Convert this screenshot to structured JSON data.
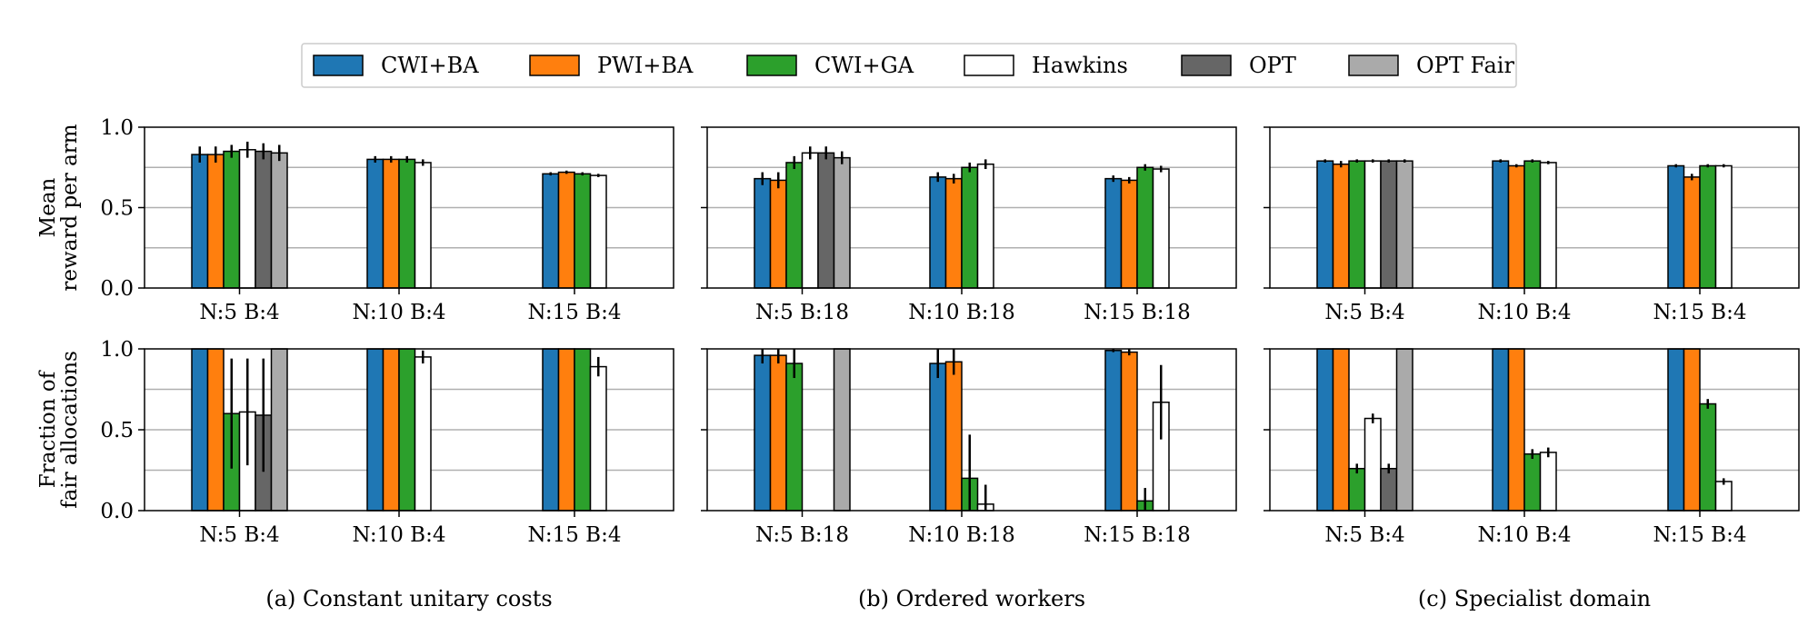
{
  "figure": {
    "captions": [
      "(a) Constant unitary costs",
      "(b) Ordered workers",
      "(c) Specialist domain"
    ],
    "row_ylabels": [
      [
        "Mean",
        "reward per arm"
      ],
      [
        "Fraction of",
        "fair allocations"
      ]
    ]
  },
  "legend": {
    "entries": [
      {
        "name": "CWI+BA",
        "color": "#1f77b4"
      },
      {
        "name": "PWI+BA",
        "color": "#ff7f0e"
      },
      {
        "name": "CWI+GA",
        "color": "#2ca02c"
      },
      {
        "name": "Hawkins",
        "color": "#ffffff"
      },
      {
        "name": "OPT",
        "color": "#666666"
      },
      {
        "name": "OPT Fair",
        "color": "#aaaaaa"
      }
    ]
  },
  "chart_data": [
    {
      "type": "bar",
      "panel": "a",
      "row": "top",
      "categories": [
        "N:5 B:4",
        "N:10 B:4",
        "N:15 B:4"
      ],
      "ylim": [
        0,
        1
      ],
      "yticks": [
        "0.0",
        "0.5",
        "1.0"
      ],
      "grid": true,
      "series": [
        {
          "name": "CWI+BA",
          "values": [
            0.83,
            0.8,
            0.71
          ],
          "errors": [
            0.05,
            0.02,
            0.01
          ]
        },
        {
          "name": "PWI+BA",
          "values": [
            0.83,
            0.8,
            0.72
          ],
          "errors": [
            0.05,
            0.02,
            0.01
          ]
        },
        {
          "name": "CWI+GA",
          "values": [
            0.85,
            0.8,
            0.71
          ],
          "errors": [
            0.04,
            0.02,
            0.01
          ]
        },
        {
          "name": "Hawkins",
          "values": [
            0.86,
            0.78,
            0.7
          ],
          "errors": [
            0.05,
            0.02,
            0.01
          ]
        },
        {
          "name": "OPT",
          "values": [
            0.85,
            null,
            null
          ],
          "errors": [
            0.05,
            null,
            null
          ]
        },
        {
          "name": "OPT Fair",
          "values": [
            0.84,
            null,
            null
          ],
          "errors": [
            0.05,
            null,
            null
          ]
        }
      ]
    },
    {
      "type": "bar",
      "panel": "b",
      "row": "top",
      "categories": [
        "N:5 B:18",
        "N:10 B:18",
        "N:15 B:18"
      ],
      "ylim": [
        0,
        1
      ],
      "yticks": [
        "0.0",
        "0.5",
        "1.0"
      ],
      "grid": true,
      "series": [
        {
          "name": "CWI+BA",
          "values": [
            0.68,
            0.69,
            0.68
          ],
          "errors": [
            0.04,
            0.03,
            0.02
          ]
        },
        {
          "name": "PWI+BA",
          "values": [
            0.67,
            0.68,
            0.67
          ],
          "errors": [
            0.05,
            0.03,
            0.02
          ]
        },
        {
          "name": "CWI+GA",
          "values": [
            0.78,
            0.75,
            0.75
          ],
          "errors": [
            0.04,
            0.03,
            0.02
          ]
        },
        {
          "name": "Hawkins",
          "values": [
            0.84,
            0.77,
            0.74
          ],
          "errors": [
            0.04,
            0.03,
            0.02
          ]
        },
        {
          "name": "OPT",
          "values": [
            0.84,
            null,
            null
          ],
          "errors": [
            0.04,
            null,
            null
          ]
        },
        {
          "name": "OPT Fair",
          "values": [
            0.81,
            null,
            null
          ],
          "errors": [
            0.04,
            null,
            null
          ]
        }
      ]
    },
    {
      "type": "bar",
      "panel": "c",
      "row": "top",
      "categories": [
        "N:5 B:4",
        "N:10 B:4",
        "N:15 B:4"
      ],
      "ylim": [
        0,
        1
      ],
      "yticks": [
        "0.0",
        "0.5",
        "1.0"
      ],
      "grid": true,
      "series": [
        {
          "name": "CWI+BA",
          "values": [
            0.79,
            0.79,
            0.76
          ],
          "errors": [
            0.01,
            0.01,
            0.01
          ]
        },
        {
          "name": "PWI+BA",
          "values": [
            0.77,
            0.76,
            0.69
          ],
          "errors": [
            0.02,
            0.01,
            0.02
          ]
        },
        {
          "name": "CWI+GA",
          "values": [
            0.79,
            0.79,
            0.76
          ],
          "errors": [
            0.01,
            0.01,
            0.01
          ]
        },
        {
          "name": "Hawkins",
          "values": [
            0.79,
            0.78,
            0.76
          ],
          "errors": [
            0.01,
            0.01,
            0.01
          ]
        },
        {
          "name": "OPT",
          "values": [
            0.79,
            null,
            null
          ],
          "errors": [
            0.01,
            null,
            null
          ]
        },
        {
          "name": "OPT Fair",
          "values": [
            0.79,
            null,
            null
          ],
          "errors": [
            0.01,
            null,
            null
          ]
        }
      ]
    },
    {
      "type": "bar",
      "panel": "a",
      "row": "bottom",
      "categories": [
        "N:5 B:4",
        "N:10 B:4",
        "N:15 B:4"
      ],
      "ylim": [
        0,
        1
      ],
      "yticks": [
        "0.0",
        "0.5",
        "1.0"
      ],
      "grid": true,
      "series": [
        {
          "name": "CWI+BA",
          "values": [
            1.0,
            1.0,
            1.0
          ],
          "errors": [
            0,
            0,
            0
          ]
        },
        {
          "name": "PWI+BA",
          "values": [
            1.0,
            1.0,
            1.0
          ],
          "errors": [
            0,
            0,
            0
          ]
        },
        {
          "name": "CWI+GA",
          "values": [
            0.6,
            1.0,
            1.0
          ],
          "errors": [
            0.34,
            0,
            0
          ]
        },
        {
          "name": "Hawkins",
          "values": [
            0.61,
            0.95,
            0.89
          ],
          "errors": [
            0.33,
            0.04,
            0.06
          ]
        },
        {
          "name": "OPT",
          "values": [
            0.59,
            null,
            null
          ],
          "errors": [
            0.35,
            null,
            null
          ]
        },
        {
          "name": "OPT Fair",
          "values": [
            1.0,
            null,
            null
          ],
          "errors": [
            0,
            null,
            null
          ]
        }
      ]
    },
    {
      "type": "bar",
      "panel": "b",
      "row": "bottom",
      "categories": [
        "N:5 B:18",
        "N:10 B:18",
        "N:15 B:18"
      ],
      "ylim": [
        0,
        1
      ],
      "yticks": [
        "0.0",
        "0.5",
        "1.0"
      ],
      "grid": true,
      "series": [
        {
          "name": "CWI+BA",
          "values": [
            0.96,
            0.91,
            0.99
          ],
          "errors": [
            0.05,
            0.09,
            0.01
          ]
        },
        {
          "name": "PWI+BA",
          "values": [
            0.96,
            0.92,
            0.98
          ],
          "errors": [
            0.05,
            0.08,
            0.02
          ]
        },
        {
          "name": "CWI+GA",
          "values": [
            0.91,
            0.2,
            0.06
          ],
          "errors": [
            0.09,
            0.27,
            0.08
          ]
        },
        {
          "name": "Hawkins",
          "values": [
            0.0,
            0.04,
            0.67
          ],
          "errors": [
            0,
            0.12,
            0.23
          ]
        },
        {
          "name": "OPT",
          "values": [
            0.0,
            null,
            null
          ],
          "errors": [
            0,
            null,
            null
          ]
        },
        {
          "name": "OPT Fair",
          "values": [
            1.0,
            null,
            null
          ],
          "errors": [
            0,
            null,
            null
          ]
        }
      ]
    },
    {
      "type": "bar",
      "panel": "c",
      "row": "bottom",
      "categories": [
        "N:5 B:4",
        "N:10 B:4",
        "N:15 B:4"
      ],
      "ylim": [
        0,
        1
      ],
      "yticks": [
        "0.0",
        "0.5",
        "1.0"
      ],
      "grid": true,
      "series": [
        {
          "name": "CWI+BA",
          "values": [
            1.0,
            1.0,
            1.0
          ],
          "errors": [
            0,
            0,
            0
          ]
        },
        {
          "name": "PWI+BA",
          "values": [
            1.0,
            1.0,
            1.0
          ],
          "errors": [
            0,
            0,
            0
          ]
        },
        {
          "name": "CWI+GA",
          "values": [
            0.26,
            0.35,
            0.66
          ],
          "errors": [
            0.03,
            0.03,
            0.03
          ]
        },
        {
          "name": "Hawkins",
          "values": [
            0.57,
            0.36,
            0.18
          ],
          "errors": [
            0.03,
            0.03,
            0.02
          ]
        },
        {
          "name": "OPT",
          "values": [
            0.26,
            null,
            null
          ],
          "errors": [
            0.03,
            null,
            null
          ]
        },
        {
          "name": "OPT Fair",
          "values": [
            1.0,
            null,
            null
          ],
          "errors": [
            0,
            null,
            null
          ]
        }
      ]
    }
  ]
}
